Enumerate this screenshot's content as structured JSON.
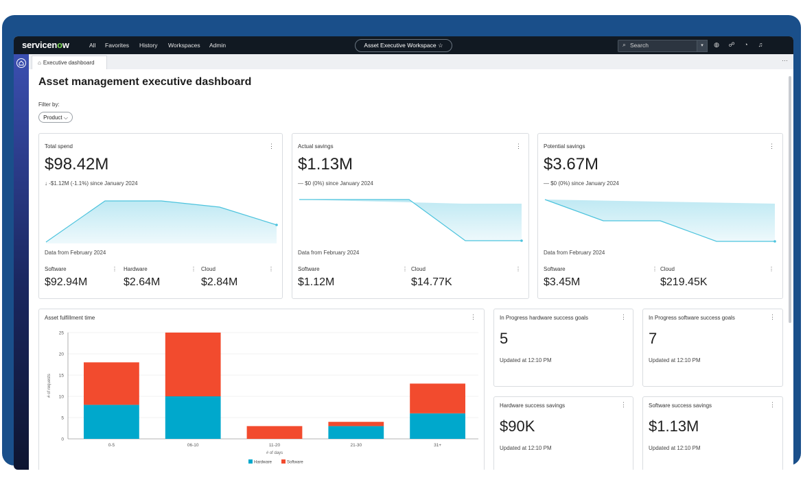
{
  "nav": {
    "logo_a": "servicen",
    "logo_o": "o",
    "logo_b": "w",
    "items": [
      "All",
      "Favorites",
      "History",
      "Workspaces",
      "Admin"
    ],
    "workspace": "Asset Executive Workspace ☆",
    "search_placeholder": "Search"
  },
  "tab": {
    "label": "Executive dashboard"
  },
  "page": {
    "title": "Asset management executive dashboard",
    "filter_label": "Filter by:",
    "filter_chip": "Product ⌵"
  },
  "cards": {
    "total_spend": {
      "title": "Total spend",
      "value": "$98.42M",
      "delta": "↓ -$1.12M (-1.1%) since January 2024",
      "data_from": "Data from February 2024",
      "subs": [
        {
          "label": "Software",
          "value": "$92.94M"
        },
        {
          "label": "Hardware",
          "value": "$2.64M"
        },
        {
          "label": "Cloud",
          "value": "$2.84M"
        }
      ]
    },
    "actual_savings": {
      "title": "Actual savings",
      "value": "$1.13M",
      "delta": "— $0 (0%) since January 2024",
      "data_from": "Data from February 2024",
      "subs": [
        {
          "label": "Software",
          "value": "$1.12M"
        },
        {
          "label": "Cloud",
          "value": "$14.77K"
        }
      ]
    },
    "potential_savings": {
      "title": "Potential savings",
      "value": "$3.67M",
      "delta": "— $0 (0%) since January 2024",
      "data_from": "Data from February 2024",
      "subs": [
        {
          "label": "Software",
          "value": "$3.45M"
        },
        {
          "label": "Cloud",
          "value": "$219.45K"
        }
      ]
    },
    "hw_goals": {
      "title": "In Progress hardware success goals",
      "value": "5",
      "updated": "Updated at 12:10 PM"
    },
    "sw_goals": {
      "title": "In Progress software success goals",
      "value": "7",
      "updated": "Updated at 12:10 PM"
    },
    "hw_savings": {
      "title": "Hardware success savings",
      "value": "$90K",
      "updated": "Updated at 12:10 PM"
    },
    "sw_savings": {
      "title": "Software success savings",
      "value": "$1.13M",
      "updated": "Updated at 12:10 PM"
    }
  },
  "fulfillment": {
    "title": "Asset fulfillment time",
    "ylabel": "# of requests",
    "xlabel": "# of days"
  },
  "chart_data": {
    "type": "bar",
    "stacked": true,
    "categories": [
      "0-5",
      "06-10",
      "11-20",
      "21-30",
      "31+"
    ],
    "series": [
      {
        "name": "Hardware",
        "values": [
          8,
          10,
          0,
          3,
          6
        ],
        "color": "#00a8cc"
      },
      {
        "name": "Software",
        "values": [
          10,
          15,
          3,
          1,
          7
        ],
        "color": "#f24b2e"
      }
    ],
    "ylim": [
      0,
      25
    ],
    "yticks": [
      0,
      5,
      10,
      15,
      20,
      25
    ],
    "legend": "bottom"
  },
  "colors": {
    "spark_line": "#4cc3dd",
    "hardware": "#00a8cc",
    "software": "#f24b2e"
  }
}
